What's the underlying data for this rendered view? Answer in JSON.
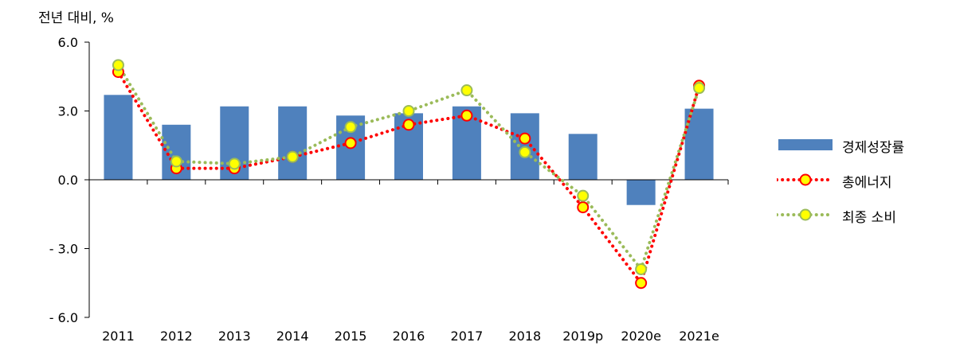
{
  "chart_data": {
    "type": "bar",
    "categories": [
      "2011",
      "2012",
      "2013",
      "2014",
      "2015",
      "2016",
      "2017",
      "2018",
      "2019p",
      "2020e",
      "2021e"
    ],
    "ylabel": "전년 대비, %",
    "ylim": [
      -6,
      6
    ],
    "yticks": [
      6,
      3,
      0,
      -3,
      -6
    ],
    "ytick_labels": [
      "6.0",
      "3.0",
      "0.0",
      "- 3.0",
      "- 6.0"
    ],
    "series": [
      {
        "name": "경제성장률",
        "kind": "bar",
        "color": "#4f81bd",
        "values": [
          3.7,
          2.4,
          3.2,
          3.2,
          2.8,
          2.9,
          3.2,
          2.9,
          2.0,
          -1.1,
          3.1
        ]
      },
      {
        "name": "총에너지",
        "kind": "line",
        "color": "#ff0000",
        "marker_fill": "#ffff00",
        "values": [
          4.7,
          0.5,
          0.5,
          1.0,
          1.6,
          2.4,
          2.8,
          1.8,
          -1.2,
          -4.5,
          4.1
        ]
      },
      {
        "name": "최종 소비",
        "kind": "line",
        "color": "#9bbb59",
        "marker_fill": "#ffff00",
        "values": [
          5.0,
          0.8,
          0.7,
          1.0,
          2.3,
          3.0,
          3.9,
          1.2,
          -0.7,
          -3.9,
          4.0
        ]
      }
    ],
    "legend_position": "right",
    "grid": false
  }
}
